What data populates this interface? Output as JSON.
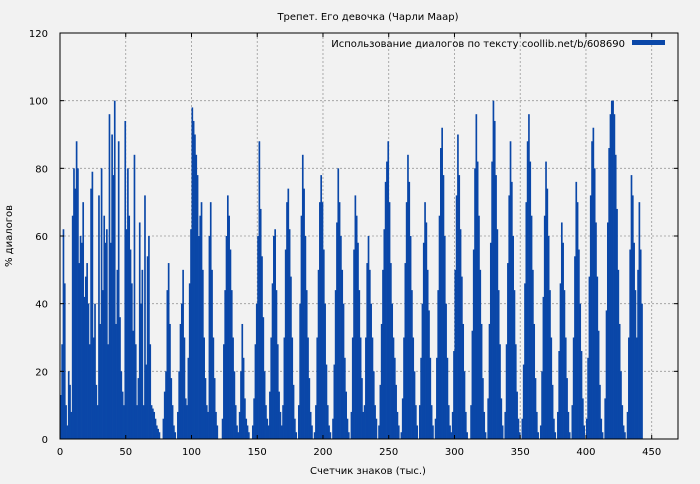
{
  "chart_data": {
    "type": "bar",
    "title": "Трепет. Его девочка (Чарли Маар)",
    "xlabel": "Счетчик знаков (тыс.)",
    "ylabel": "% диалогов",
    "xlim": [
      0,
      470
    ],
    "ylim": [
      0,
      120
    ],
    "x_ticks": [
      0,
      50,
      100,
      150,
      200,
      250,
      300,
      350,
      400,
      450
    ],
    "y_ticks": [
      0,
      20,
      40,
      60,
      80,
      100,
      120
    ],
    "grid": true,
    "legend_position": "top-right",
    "color": "#0a47a8",
    "series": [
      {
        "name": "Использование диалогов по тексту coollib.net/b/608690",
        "x_start": 0,
        "x_step": 1,
        "values": [
          13,
          28,
          62,
          46,
          10,
          4,
          20,
          16,
          8,
          66,
          80,
          74,
          88,
          80,
          52,
          60,
          58,
          70,
          42,
          48,
          52,
          40,
          28,
          74,
          79,
          30,
          40,
          16,
          10,
          72,
          34,
          80,
          44,
          66,
          58,
          62,
          28,
          96,
          58,
          90,
          78,
          100,
          34,
          50,
          88,
          36,
          20,
          14,
          10,
          94,
          62,
          80,
          66,
          56,
          46,
          32,
          84,
          28,
          10,
          18,
          64,
          40,
          50,
          10,
          72,
          22,
          54,
          60,
          28,
          10,
          9,
          8,
          6,
          4,
          3,
          2,
          0,
          0,
          6,
          14,
          20,
          44,
          52,
          34,
          18,
          10,
          4,
          2,
          0,
          8,
          20,
          34,
          40,
          50,
          30,
          12,
          10,
          24,
          46,
          62,
          98,
          94,
          90,
          84,
          78,
          60,
          66,
          70,
          50,
          30,
          18,
          10,
          8,
          60,
          70,
          50,
          30,
          18,
          8,
          4,
          0,
          0,
          0,
          6,
          28,
          44,
          60,
          72,
          66,
          56,
          44,
          30,
          20,
          10,
          4,
          2,
          8,
          20,
          34,
          24,
          12,
          6,
          4,
          2,
          0,
          0,
          4,
          12,
          28,
          40,
          60,
          88,
          68,
          54,
          36,
          20,
          10,
          6,
          4,
          14,
          30,
          46,
          60,
          62,
          44,
          28,
          14,
          8,
          4,
          10,
          30,
          56,
          70,
          74,
          62,
          48,
          30,
          16,
          6,
          2,
          0,
          10,
          40,
          66,
          84,
          74,
          60,
          44,
          30,
          18,
          8,
          4,
          0,
          2,
          10,
          30,
          50,
          70,
          78,
          70,
          56,
          40,
          22,
          10,
          4,
          2,
          0,
          6,
          22,
          44,
          64,
          80,
          70,
          60,
          50,
          40,
          24,
          14,
          6,
          2,
          0,
          8,
          30,
          56,
          72,
          66,
          58,
          44,
          30,
          18,
          8,
          10,
          30,
          52,
          60,
          50,
          40,
          30,
          20,
          10,
          6,
          0,
          4,
          16,
          34,
          50,
          62,
          76,
          82,
          88,
          70,
          52,
          40,
          30,
          24,
          16,
          8,
          4,
          0,
          2,
          12,
          30,
          52,
          70,
          84,
          76,
          60,
          44,
          30,
          20,
          10,
          4,
          0,
          10,
          24,
          40,
          58,
          70,
          64,
          50,
          38,
          24,
          10,
          4,
          0,
          6,
          24,
          44,
          66,
          86,
          92,
          78,
          60,
          40,
          24,
          10,
          4,
          2,
          8,
          26,
          50,
          72,
          90,
          78,
          62,
          48,
          34,
          20,
          8,
          2,
          0,
          0,
          10,
          32,
          56,
          80,
          96,
          82,
          66,
          50,
          34,
          18,
          8,
          2,
          0,
          12,
          34,
          58,
          82,
          100,
          94,
          78,
          62,
          44,
          28,
          12,
          4,
          0,
          8,
          28,
          52,
          72,
          88,
          76,
          60,
          44,
          28,
          14,
          6,
          2,
          0,
          6,
          22,
          46,
          70,
          88,
          96,
          82,
          66,
          50,
          34,
          18,
          8,
          2,
          0,
          4,
          20,
          42,
          66,
          82,
          74,
          60,
          44,
          30,
          16,
          6,
          2,
          0,
          8,
          26,
          46,
          64,
          58,
          44,
          30,
          18,
          8,
          2,
          0,
          10,
          30,
          54,
          76,
          70,
          56,
          40,
          26,
          12,
          4,
          0,
          6,
          24,
          48,
          72,
          88,
          92,
          80,
          64,
          48,
          32,
          16,
          6,
          2,
          0,
          12,
          38,
          64,
          86,
          96,
          100,
          100,
          96,
          84,
          68,
          50,
          34,
          20,
          10,
          4,
          2,
          0,
          8,
          30,
          56,
          78,
          72,
          58,
          44,
          30,
          50,
          70,
          56,
          40
        ]
      }
    ]
  }
}
